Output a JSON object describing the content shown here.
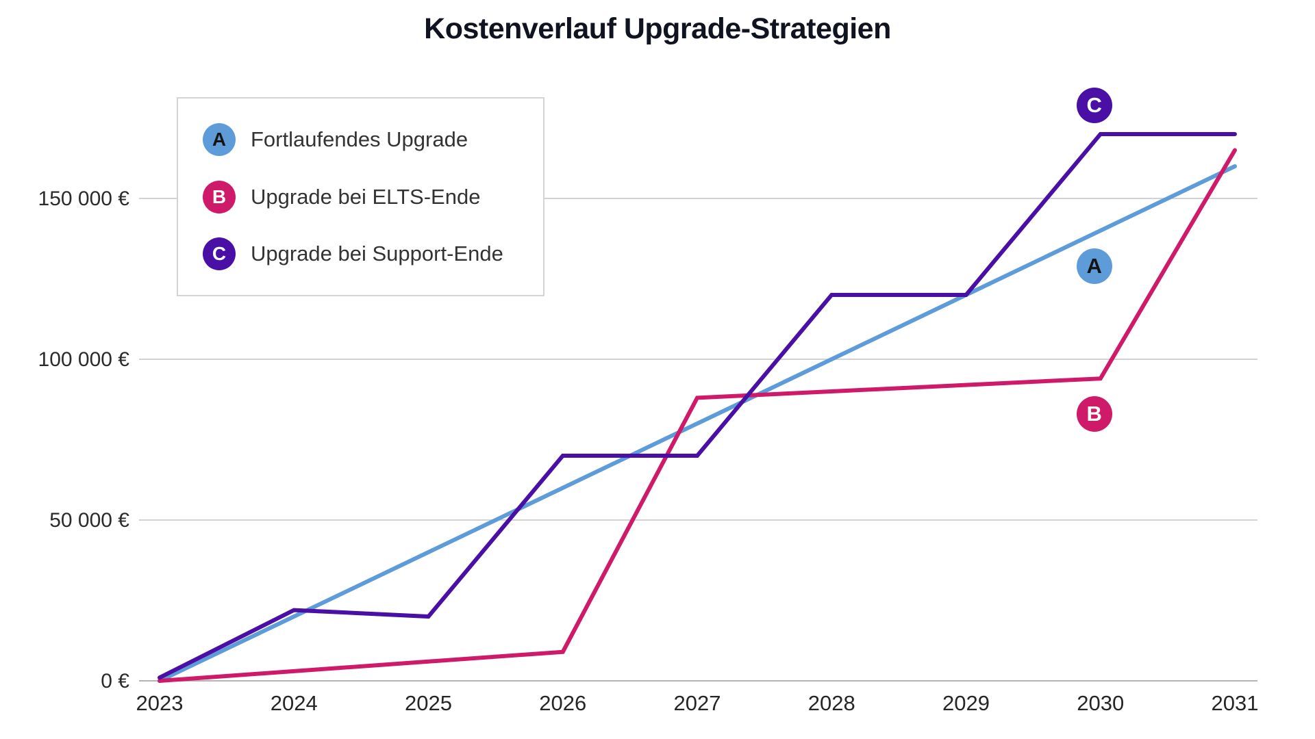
{
  "title": "Kostenverlauf Upgrade-Strategien",
  "chart_data": {
    "type": "line",
    "title": "Kostenverlauf Upgrade-Strategien",
    "x": [
      2023,
      2024,
      2025,
      2026,
      2027,
      2028,
      2029,
      2030,
      2031
    ],
    "x_tick_labels": [
      "2023",
      "2024",
      "2025",
      "2026",
      "2027",
      "2028",
      "2029",
      "2030",
      "2031"
    ],
    "y_ticks": [
      {
        "value": 0,
        "label": "0 €"
      },
      {
        "value": 50000,
        "label": "50 000 €"
      },
      {
        "value": 100000,
        "label": "100 000 €"
      },
      {
        "value": 150000,
        "label": "150 000 €"
      }
    ],
    "ylim": [
      0,
      185000
    ],
    "currency": "EUR",
    "grid": "horizontal-only",
    "legend_position": "top-left-inside",
    "series": [
      {
        "id": "A",
        "name": "Fortlaufendes Upgrade",
        "color": "#5E9CD9",
        "letter_color": "#141414",
        "values": [
          0,
          20000,
          40000,
          60000,
          80000,
          100000,
          120000,
          140000,
          160000
        ]
      },
      {
        "id": "B",
        "name": "Upgrade bei ELTS-Ende",
        "color": "#CE1A69",
        "letter_color": "#ffffff",
        "values": [
          0,
          3000,
          6000,
          9000,
          88000,
          90000,
          92000,
          94000,
          165000
        ]
      },
      {
        "id": "C",
        "name": "Upgrade bei Support-Ende",
        "color": "#4A10A6",
        "letter_color": "#ffffff",
        "values": [
          1000,
          22000,
          20000,
          70000,
          70000,
          120000,
          120000,
          170000,
          170000
        ]
      }
    ],
    "annotations": [
      {
        "letter": "A",
        "series": "A",
        "year": 2030,
        "value": 129000,
        "color": "#5E9CD9",
        "text_color": "#141414"
      },
      {
        "letter": "B",
        "series": "B",
        "year": 2030,
        "value": 83000,
        "color": "#CE1A69",
        "text_color": "#ffffff"
      },
      {
        "letter": "C",
        "series": "C",
        "year": 2030,
        "value": 179000,
        "color": "#4A10A6",
        "text_color": "#ffffff"
      }
    ]
  }
}
